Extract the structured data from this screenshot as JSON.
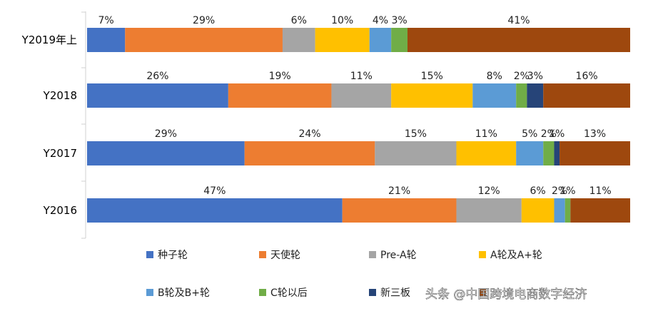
{
  "chart_data": {
    "type": "bar",
    "orientation": "horizontal",
    "stacked": true,
    "percent_stacked": true,
    "categories": [
      "Y2019年上",
      "Y2018",
      "Y2017",
      "Y2016"
    ],
    "series": [
      {
        "name": "种子轮",
        "color": "#4472C4",
        "values": [
          7,
          26,
          29,
          47
        ]
      },
      {
        "name": "天使轮",
        "color": "#ED7D31",
        "values": [
          29,
          19,
          24,
          21
        ]
      },
      {
        "name": "Pre-A轮",
        "color": "#A5A5A5",
        "values": [
          6,
          11,
          15,
          12
        ]
      },
      {
        "name": "A轮及A+轮",
        "color": "#FFC000",
        "values": [
          10,
          15,
          11,
          6
        ]
      },
      {
        "name": "B轮及B+轮",
        "color": "#5B9BD5",
        "values": [
          4,
          8,
          5,
          2
        ]
      },
      {
        "name": "C轮以后",
        "color": "#70AD47",
        "values": [
          3,
          2,
          2,
          1
        ]
      },
      {
        "name": "新三板",
        "color": "#264478",
        "values": [
          0,
          3,
          1,
          0
        ]
      },
      {
        "name": "",
        "color": "#9E480E",
        "values": [
          41,
          16,
          13,
          11
        ]
      }
    ],
    "data_labels": [
      [
        "7%",
        "29%",
        "6%",
        "10%",
        "4%",
        "3%",
        "",
        "41%"
      ],
      [
        "26%",
        "19%",
        "11%",
        "15%",
        "8%",
        "2%",
        "3%",
        "16%"
      ],
      [
        "29%",
        "24%",
        "15%",
        "11%",
        "5%",
        "2%",
        "1%",
        "13%"
      ],
      [
        "47%",
        "21%",
        "12%",
        "6%",
        "2%",
        "1%",
        "",
        "11%"
      ]
    ],
    "xlim": [
      0,
      100
    ],
    "legend_position": "bottom",
    "grid": false
  },
  "watermark": "头条 @中国跨境电商数字经济"
}
